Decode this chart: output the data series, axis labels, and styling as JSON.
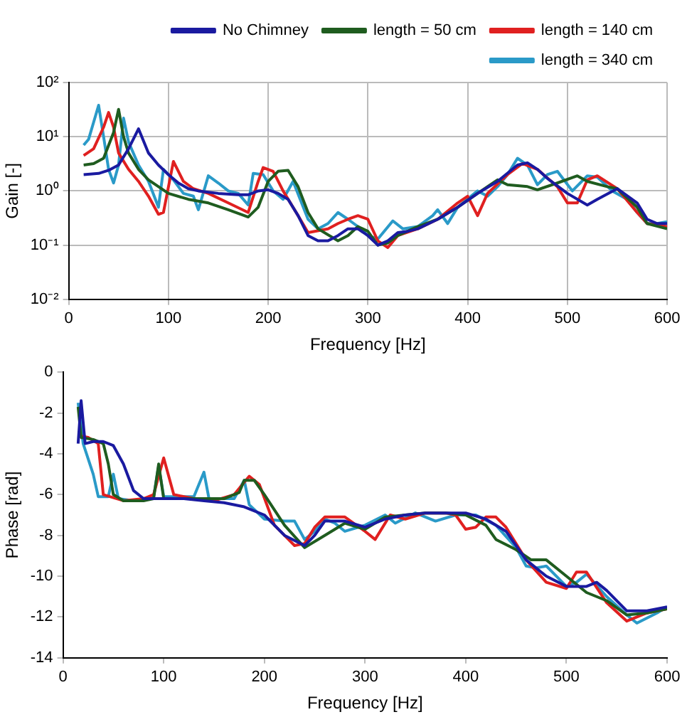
{
  "chart_data": [
    {
      "type": "line",
      "xlabel": "Frequency [Hz]",
      "ylabel": "Gain [-]",
      "log": "y",
      "grid": true,
      "legend": "top right",
      "xlim": [
        0,
        600
      ],
      "xticks": [
        0,
        100,
        200,
        300,
        400,
        500,
        600
      ],
      "ylim": [
        0.01,
        100
      ],
      "yticks": [
        {
          "value": 0.01,
          "label": "10⁻²"
        },
        {
          "value": 0.1,
          "label": "10⁻¹"
        },
        {
          "value": 1,
          "label": "10⁰"
        },
        {
          "value": 10,
          "label": "10¹"
        },
        {
          "value": 100,
          "label": "10²"
        }
      ],
      "series": [
        {
          "name": "No Chimney",
          "color": "#1a1aa0",
          "x": [
            15,
            30,
            40,
            50,
            60,
            70,
            80,
            90,
            100,
            110,
            120,
            130,
            150,
            170,
            180,
            190,
            200,
            210,
            220,
            230,
            240,
            250,
            260,
            270,
            280,
            290,
            300,
            310,
            320,
            330,
            340,
            350,
            370,
            390,
            410,
            430,
            450,
            460,
            470,
            480,
            500,
            520,
            530,
            550,
            570,
            580,
            590,
            600
          ],
          "values": [
            2,
            2.1,
            2.4,
            3,
            6,
            14,
            5,
            3,
            2,
            1.4,
            1.1,
            1.0,
            0.9,
            0.85,
            0.85,
            1.0,
            1.05,
            0.9,
            0.7,
            0.35,
            0.15,
            0.12,
            0.12,
            0.15,
            0.2,
            0.2,
            0.15,
            0.1,
            0.12,
            0.17,
            0.18,
            0.2,
            0.3,
            0.5,
            0.9,
            1.5,
            3,
            3.3,
            2.5,
            1.7,
            0.9,
            0.55,
            0.7,
            1.1,
            0.6,
            0.3,
            0.25,
            0.25
          ]
        },
        {
          "name": "length = 50 cm",
          "color": "#1f5c1f",
          "x": [
            15,
            25,
            35,
            45,
            50,
            55,
            60,
            70,
            80,
            90,
            100,
            120,
            140,
            160,
            180,
            190,
            200,
            210,
            220,
            230,
            240,
            250,
            270,
            280,
            290,
            300,
            310,
            320,
            330,
            350,
            370,
            390,
            410,
            430,
            440,
            460,
            470,
            490,
            510,
            520,
            540,
            550,
            570,
            580,
            600
          ],
          "values": [
            3,
            3.2,
            4,
            12,
            32,
            10,
            5,
            2.5,
            1.6,
            1.2,
            0.9,
            0.7,
            0.6,
            0.45,
            0.33,
            0.5,
            1.5,
            2.3,
            2.4,
            1.2,
            0.4,
            0.2,
            0.12,
            0.15,
            0.22,
            0.18,
            0.1,
            0.11,
            0.15,
            0.22,
            0.3,
            0.5,
            0.9,
            1.6,
            1.3,
            1.2,
            1.05,
            1.4,
            1.9,
            1.5,
            1.2,
            1.1,
            0.5,
            0.25,
            0.2
          ]
        },
        {
          "name": "length = 140 cm",
          "color": "#e02020",
          "x": [
            15,
            25,
            35,
            40,
            45,
            50,
            60,
            70,
            80,
            90,
            95,
            105,
            115,
            125,
            140,
            160,
            180,
            190,
            195,
            205,
            215,
            230,
            240,
            260,
            270,
            280,
            290,
            300,
            310,
            320,
            330,
            350,
            370,
            390,
            400,
            410,
            420,
            440,
            455,
            470,
            490,
            500,
            510,
            520,
            530,
            550,
            570,
            580,
            600
          ],
          "values": [
            4.5,
            6,
            15,
            28,
            15,
            5,
            2.5,
            1.5,
            0.8,
            0.37,
            0.4,
            3.5,
            1.5,
            1.1,
            0.9,
            0.6,
            0.4,
            1.5,
            2.7,
            2.3,
            1.0,
            0.35,
            0.17,
            0.2,
            0.25,
            0.3,
            0.35,
            0.3,
            0.12,
            0.09,
            0.15,
            0.2,
            0.3,
            0.6,
            0.8,
            0.35,
            0.9,
            2,
            3.2,
            2.5,
            1.2,
            0.6,
            0.6,
            1.6,
            1.9,
            1.1,
            0.4,
            0.25,
            0.22
          ]
        },
        {
          "name": "length = 340 cm",
          "color": "#2a9ac8",
          "x": [
            15,
            20,
            30,
            35,
            40,
            45,
            50,
            55,
            60,
            70,
            80,
            90,
            95,
            105,
            115,
            125,
            130,
            140,
            150,
            160,
            170,
            180,
            185,
            195,
            205,
            215,
            225,
            240,
            250,
            260,
            270,
            280,
            290,
            300,
            310,
            325,
            335,
            350,
            365,
            370,
            380,
            390,
            410,
            420,
            430,
            440,
            450,
            460,
            470,
            480,
            490,
            505,
            520,
            530,
            545,
            560,
            570,
            580,
            590,
            600
          ],
          "values": [
            7,
            9,
            38,
            10,
            2.5,
            1.4,
            3,
            22,
            8,
            3,
            1.5,
            0.5,
            2.5,
            1.6,
            0.9,
            0.8,
            0.45,
            1.9,
            1.4,
            1.0,
            0.9,
            0.55,
            2.1,
            2.0,
            1.0,
            0.7,
            1.5,
            0.3,
            0.2,
            0.25,
            0.4,
            0.3,
            0.22,
            0.15,
            0.13,
            0.28,
            0.2,
            0.22,
            0.35,
            0.45,
            0.25,
            0.5,
            1.0,
            0.8,
            1.2,
            2.0,
            4,
            3,
            1.3,
            2.0,
            2.3,
            1.0,
            1.9,
            1.8,
            1.0,
            0.7,
            0.4,
            0.25,
            0.25,
            0.27
          ]
        }
      ]
    },
    {
      "type": "line",
      "xlabel": "Frequency [Hz]",
      "ylabel": "Phase [rad]",
      "xlim": [
        0,
        600
      ],
      "xticks": [
        0,
        100,
        200,
        300,
        400,
        500,
        600
      ],
      "ylim": [
        -14,
        0
      ],
      "yticks": [
        -14,
        -12,
        -10,
        -8,
        -6,
        -4,
        -2,
        0
      ],
      "series": [
        {
          "color": "#1a1aa0",
          "x": [
            15,
            18,
            22,
            30,
            40,
            50,
            60,
            70,
            80,
            100,
            120,
            140,
            160,
            180,
            200,
            220,
            240,
            250,
            260,
            280,
            300,
            320,
            340,
            360,
            380,
            400,
            420,
            440,
            460,
            480,
            500,
            520,
            530,
            540,
            560,
            580,
            600
          ],
          "values": [
            -3.5,
            -1.4,
            -3.5,
            -3.4,
            -3.4,
            -3.6,
            -4.5,
            -5.8,
            -6.2,
            -6.2,
            -6.2,
            -6.3,
            -6.4,
            -6.6,
            -7.0,
            -8.0,
            -8.5,
            -8.0,
            -7.3,
            -7.3,
            -7.6,
            -7.2,
            -7.0,
            -6.9,
            -6.9,
            -6.9,
            -7.2,
            -7.8,
            -9.2,
            -10.0,
            -10.5,
            -10.5,
            -10.3,
            -10.7,
            -11.7,
            -11.7,
            -11.5
          ]
        },
        {
          "color": "#1f5c1f",
          "x": [
            15,
            18,
            30,
            40,
            45,
            50,
            60,
            80,
            90,
            95,
            100,
            130,
            160,
            175,
            180,
            190,
            200,
            220,
            240,
            260,
            280,
            300,
            320,
            340,
            360,
            380,
            400,
            420,
            430,
            450,
            465,
            480,
            500,
            520,
            540,
            560,
            580,
            600
          ],
          "values": [
            -1.7,
            -3.2,
            -3.3,
            -3.5,
            -4.5,
            -6.0,
            -6.3,
            -6.3,
            -6.2,
            -4.5,
            -6.2,
            -6.2,
            -6.2,
            -5.9,
            -5.3,
            -5.3,
            -6.0,
            -7.5,
            -8.6,
            -8.0,
            -7.4,
            -7.7,
            -7.1,
            -7.0,
            -6.9,
            -6.9,
            -7.0,
            -7.5,
            -8.2,
            -8.7,
            -9.2,
            -9.2,
            -10.0,
            -10.8,
            -11.2,
            -11.9,
            -11.8,
            -11.6
          ]
        },
        {
          "color": "#e02020",
          "x": [
            15,
            25,
            35,
            40,
            60,
            80,
            90,
            100,
            110,
            130,
            150,
            170,
            185,
            195,
            210,
            230,
            240,
            250,
            260,
            280,
            300,
            310,
            325,
            340,
            360,
            380,
            390,
            400,
            410,
            420,
            430,
            440,
            460,
            480,
            500,
            510,
            520,
            540,
            560,
            580,
            600
          ],
          "values": [
            -3.1,
            -3.2,
            -3.5,
            -6.0,
            -6.3,
            -6.2,
            -6.0,
            -4.2,
            -6.0,
            -6.2,
            -6.3,
            -6.0,
            -5.1,
            -5.5,
            -7.5,
            -8.5,
            -8.4,
            -7.6,
            -7.1,
            -7.1,
            -7.8,
            -8.2,
            -7.0,
            -7.2,
            -6.9,
            -6.9,
            -7.0,
            -7.7,
            -7.6,
            -7.1,
            -7.1,
            -7.6,
            -9.2,
            -10.3,
            -10.6,
            -9.8,
            -9.8,
            -11.3,
            -12.2,
            -11.8,
            -11.6
          ]
        },
        {
          "color": "#2a9ac8",
          "x": [
            15,
            20,
            30,
            35,
            45,
            50,
            55,
            70,
            90,
            95,
            100,
            130,
            140,
            145,
            170,
            180,
            185,
            200,
            220,
            230,
            240,
            250,
            260,
            270,
            280,
            300,
            320,
            330,
            350,
            370,
            390,
            410,
            430,
            450,
            460,
            470,
            480,
            500,
            510,
            520,
            540,
            560,
            570,
            590,
            600
          ],
          "values": [
            -1.5,
            -3.5,
            -5.0,
            -6.1,
            -6.1,
            -5.0,
            -6.2,
            -6.3,
            -6.1,
            -4.6,
            -6.1,
            -6.1,
            -4.9,
            -6.2,
            -6.2,
            -5.3,
            -6.5,
            -7.2,
            -7.3,
            -7.3,
            -8.2,
            -7.8,
            -7.2,
            -7.4,
            -7.8,
            -7.5,
            -7.0,
            -7.4,
            -6.9,
            -7.3,
            -7.0,
            -7.0,
            -7.5,
            -8.6,
            -9.5,
            -9.6,
            -9.5,
            -10.5,
            -10.3,
            -9.9,
            -11.0,
            -11.9,
            -12.3,
            -11.8,
            -11.5
          ]
        }
      ]
    }
  ]
}
